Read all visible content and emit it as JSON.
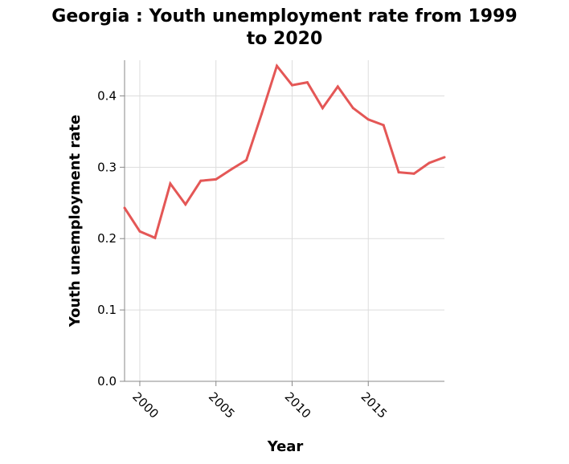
{
  "chart_data": {
    "type": "line",
    "title_line1": "Georgia : Youth unemployment rate from 1999",
    "title_line2": "to 2020",
    "xlabel": "Year",
    "ylabel": "Youth unemployment rate",
    "xlim": [
      1999,
      2020
    ],
    "ylim": [
      0,
      0.45
    ],
    "xticks": [
      2000,
      2005,
      2010,
      2015
    ],
    "yticks": [
      0.0,
      0.1,
      0.2,
      0.3,
      0.4
    ],
    "ytick_labels": [
      "0.0",
      "0.1",
      "0.2",
      "0.3",
      "0.4"
    ],
    "xtick_labels": [
      "2000",
      "2005",
      "2010",
      "2015"
    ],
    "grid": true,
    "series": [
      {
        "color": "#e45756",
        "x": [
          1999,
          2000,
          2001,
          2002,
          2003,
          2004,
          2005,
          2006,
          2007,
          2008,
          2009,
          2010,
          2011,
          2012,
          2013,
          2014,
          2015,
          2016,
          2017,
          2018,
          2019,
          2020
        ],
        "y": [
          0.243,
          0.21,
          0.201,
          0.277,
          0.248,
          0.281,
          0.283,
          0.297,
          0.31,
          0.375,
          0.442,
          0.415,
          0.419,
          0.383,
          0.413,
          0.383,
          0.367,
          0.359,
          0.293,
          0.291,
          0.306,
          0.314
        ]
      }
    ]
  }
}
